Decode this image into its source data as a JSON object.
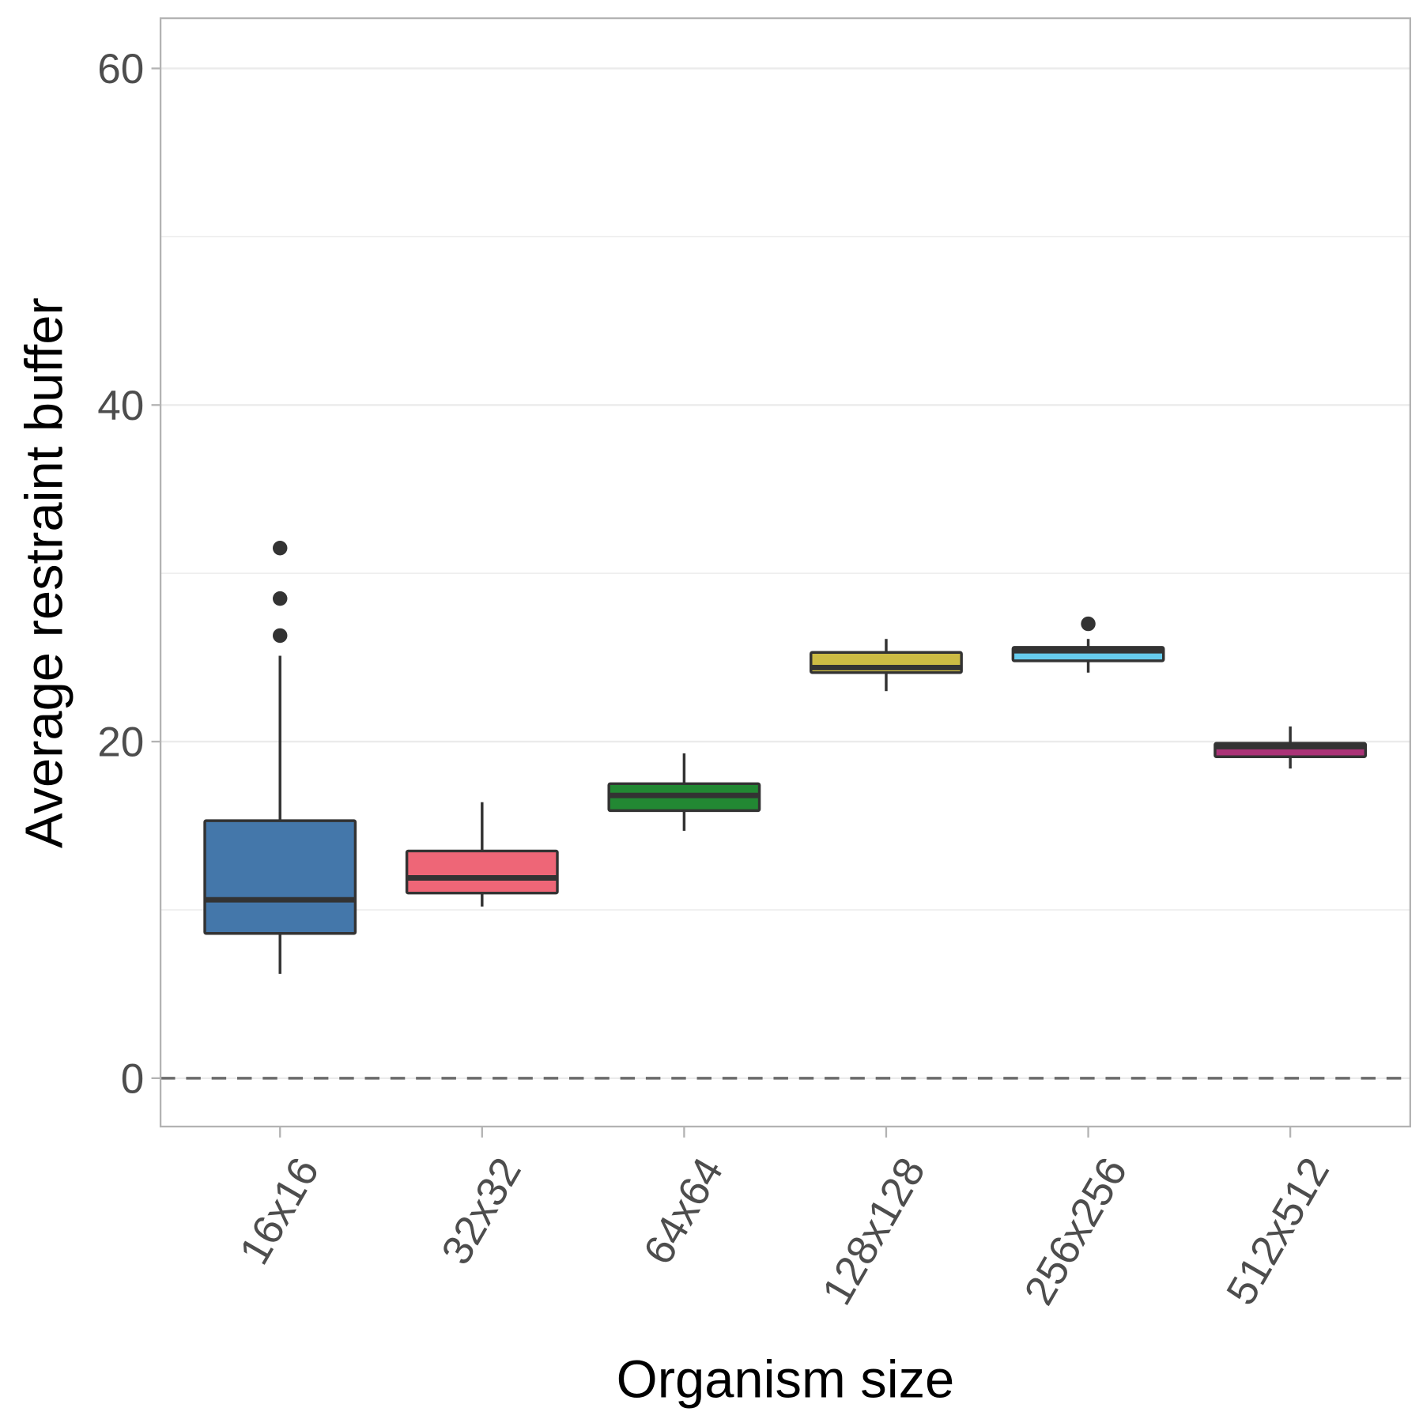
{
  "chart_data": {
    "type": "boxplot",
    "title": "",
    "xlabel": "Organism size",
    "ylabel": "Average restraint buffer",
    "ylim": [
      -3,
      62
    ],
    "yticks": [
      0,
      20,
      40,
      60
    ],
    "ytick_labels": [
      "0",
      "20",
      "40",
      "60"
    ],
    "grid": true,
    "reference_line": {
      "y": 0,
      "style": "dashed"
    },
    "categories": [
      "16x16",
      "32x32",
      "64x64",
      "128x128",
      "256x256",
      "512x512"
    ],
    "boxes": [
      {
        "category": "16x16",
        "whisker_low": 6.2,
        "q1": 8.6,
        "median": 10.6,
        "q3": 15.3,
        "whisker_high": 25.1,
        "outliers": [
          26.3,
          28.5,
          31.5
        ],
        "color": "#4477AA"
      },
      {
        "category": "32x32",
        "whisker_low": 10.2,
        "q1": 11.0,
        "median": 11.9,
        "q3": 13.5,
        "whisker_high": 16.4,
        "outliers": [],
        "color": "#EE6677"
      },
      {
        "category": "64x64",
        "whisker_low": 14.7,
        "q1": 15.9,
        "median": 16.8,
        "q3": 17.5,
        "whisker_high": 19.3,
        "outliers": [],
        "color": "#228833"
      },
      {
        "category": "128x128",
        "whisker_low": 23.0,
        "q1": 24.1,
        "median": 24.4,
        "q3": 25.3,
        "whisker_high": 26.1,
        "outliers": [],
        "color": "#CCBB44"
      },
      {
        "category": "256x256",
        "whisker_low": 24.1,
        "q1": 24.8,
        "median": 25.4,
        "q3": 25.6,
        "whisker_high": 26.1,
        "outliers": [
          27.0
        ],
        "color": "#66CCEE"
      },
      {
        "category": "512x512",
        "whisker_low": 18.4,
        "q1": 19.1,
        "median": 19.7,
        "q3": 19.9,
        "whisker_high": 20.9,
        "outliers": [],
        "color": "#AA3377"
      }
    ]
  }
}
